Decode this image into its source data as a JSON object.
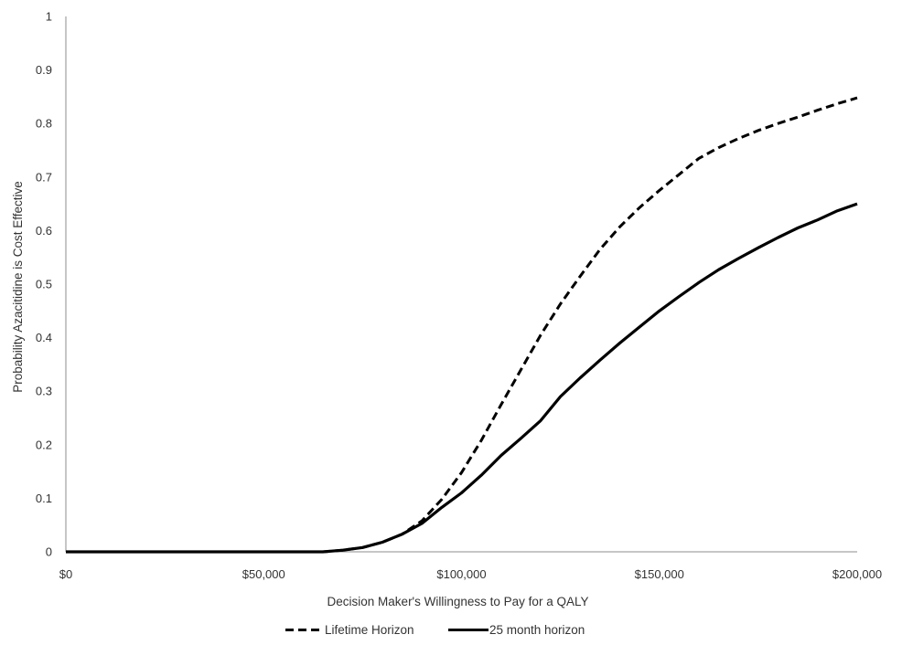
{
  "chart_data": {
    "type": "line",
    "title": "",
    "xlabel": "Decision Maker's Willingness to Pay for a QALY",
    "ylabel": "Probability Azacitidine is Cost Effective",
    "xlim": [
      0,
      200000
    ],
    "ylim": [
      0,
      1
    ],
    "x_ticks": [
      0,
      50000,
      100000,
      150000,
      200000
    ],
    "x_tick_labels": [
      "$0",
      "$50,000",
      "$100,000",
      "$150,000",
      "$200,000"
    ],
    "y_ticks": [
      0,
      0.1,
      0.2,
      0.3,
      0.4,
      0.5,
      0.6,
      0.7,
      0.8,
      0.9,
      1
    ],
    "y_tick_labels": [
      "0",
      "0.1",
      "0.2",
      "0.3",
      "0.4",
      "0.5",
      "0.6",
      "0.7",
      "0.8",
      "0.9",
      "1"
    ],
    "grid": false,
    "legend_position": "bottom",
    "series": [
      {
        "name": "Lifetime Horizon",
        "style": "dashed",
        "color": "#000000",
        "x": [
          0,
          60000,
          65000,
          70000,
          75000,
          80000,
          85000,
          90000,
          95000,
          100000,
          105000,
          110000,
          115000,
          120000,
          125000,
          130000,
          135000,
          140000,
          145000,
          150000,
          155000,
          160000,
          165000,
          170000,
          175000,
          180000,
          185000,
          190000,
          195000,
          200000
        ],
        "y": [
          0,
          0,
          0,
          0.003,
          0.008,
          0.018,
          0.033,
          0.058,
          0.098,
          0.148,
          0.208,
          0.275,
          0.34,
          0.405,
          0.463,
          0.515,
          0.565,
          0.607,
          0.643,
          0.675,
          0.705,
          0.735,
          0.755,
          0.772,
          0.787,
          0.8,
          0.812,
          0.825,
          0.837,
          0.848
        ]
      },
      {
        "name": "25 month horizon",
        "style": "solid",
        "color": "#000000",
        "x": [
          0,
          60000,
          65000,
          70000,
          75000,
          80000,
          85000,
          90000,
          95000,
          100000,
          105000,
          110000,
          115000,
          120000,
          125000,
          130000,
          135000,
          140000,
          145000,
          150000,
          155000,
          160000,
          165000,
          170000,
          175000,
          180000,
          185000,
          190000,
          195000,
          200000
        ],
        "y": [
          0,
          0,
          0,
          0.003,
          0.008,
          0.018,
          0.033,
          0.053,
          0.083,
          0.11,
          0.143,
          0.18,
          0.212,
          0.245,
          0.29,
          0.325,
          0.358,
          0.39,
          0.42,
          0.45,
          0.477,
          0.503,
          0.527,
          0.548,
          0.568,
          0.587,
          0.605,
          0.62,
          0.637,
          0.65
        ]
      }
    ]
  }
}
